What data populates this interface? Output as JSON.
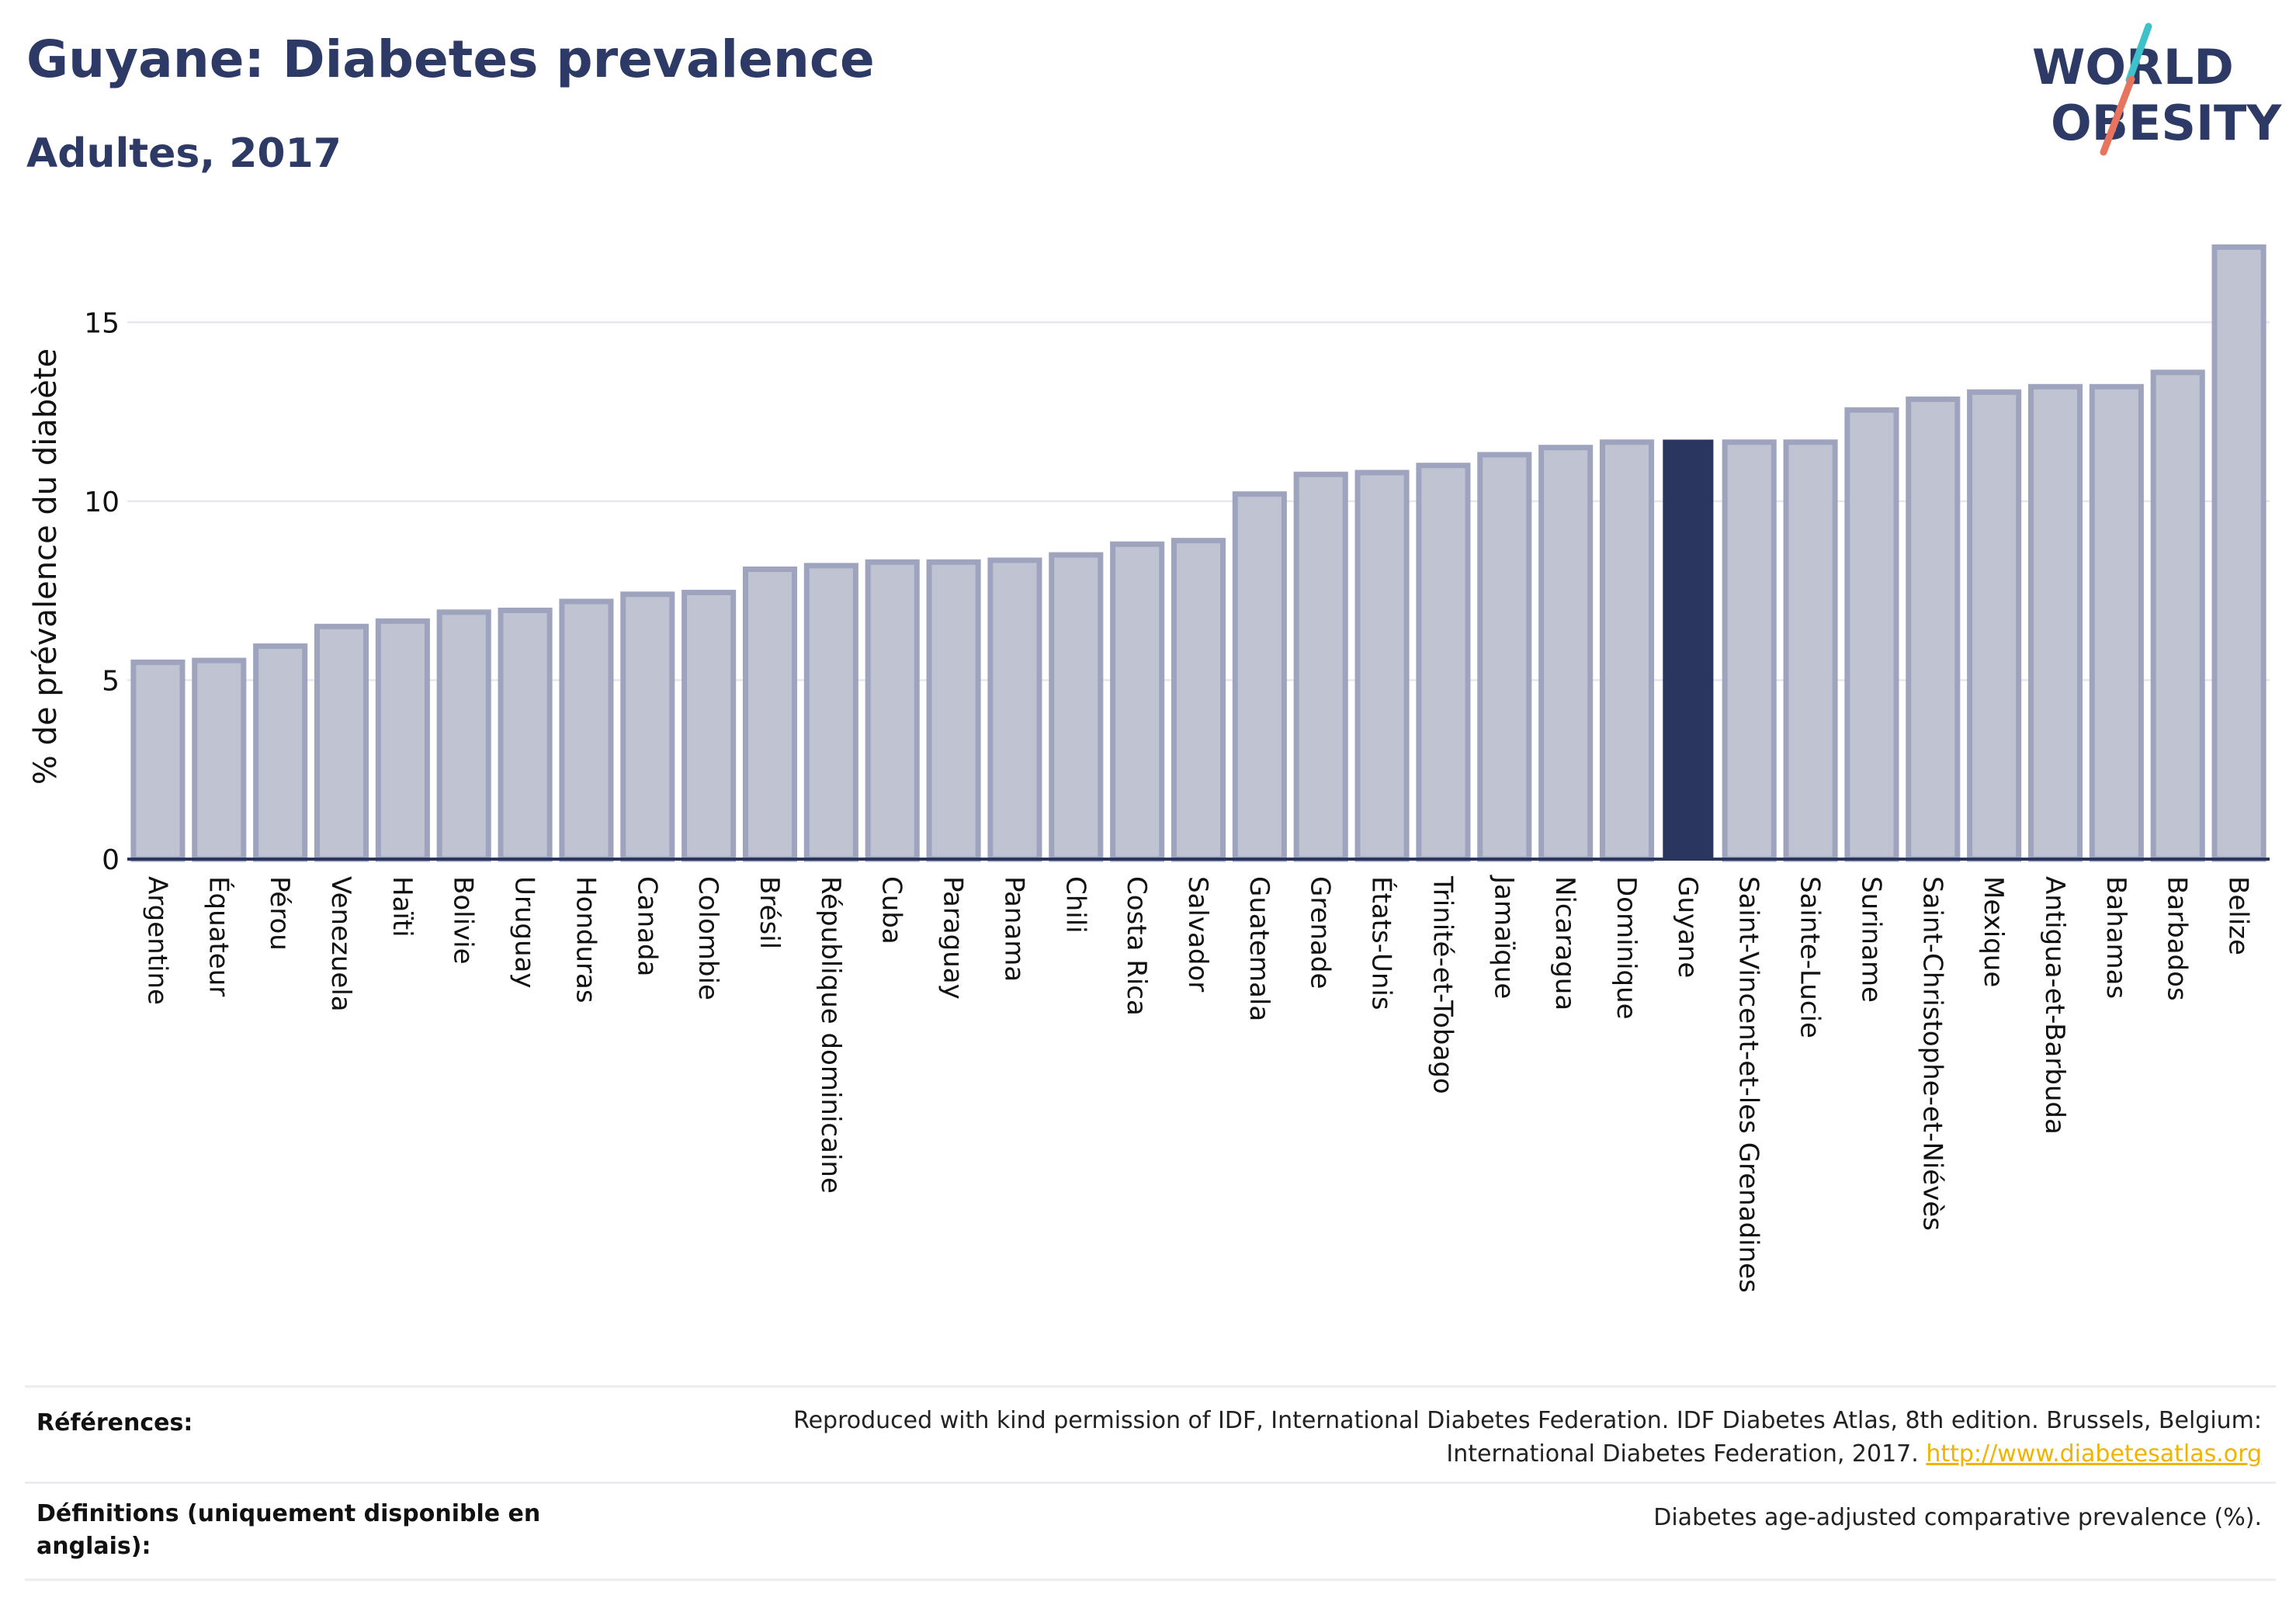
{
  "header": {
    "title": "Guyane: Diabetes prevalence",
    "subtitle": "Adultes, 2017"
  },
  "logo": {
    "line1": "WORLD",
    "line2": "OBESITY",
    "slash_colors": [
      "#3ec1c9",
      "#e8735f"
    ],
    "text_color": "#2d3a66"
  },
  "colors": {
    "bar_fill": "#c0c4d2",
    "bar_stroke": "#9ea4bd",
    "highlight": "#2a3560",
    "axis": "#2a3560",
    "grid": "#e6e7ee"
  },
  "chart_data": {
    "type": "bar",
    "title": "Guyane: Diabetes prevalence",
    "subtitle": "Adultes, 2017",
    "xlabel": "",
    "ylabel": "% de prévalence du diabète",
    "ylim": [
      0,
      17.5
    ],
    "yticks": [
      0,
      5,
      10,
      15
    ],
    "grid": true,
    "highlight": "Guyane",
    "categories": [
      "Argentine",
      "Équateur",
      "Pérou",
      "Venezuela",
      "Haïti",
      "Bolivie",
      "Uruguay",
      "Honduras",
      "Canada",
      "Colombie",
      "Brésil",
      "République dominicaine",
      "Cuba",
      "Paraguay",
      "Panama",
      "Chili",
      "Costa Rica",
      "Salvador",
      "Guatemala",
      "Grenade",
      "États-Unis",
      "Trinité-et-Tobago",
      "Jamaïque",
      "Nicaragua",
      "Dominique",
      "Guyane",
      "Saint-Vincent-et-les Grenadines",
      "Sainte-Lucie",
      "Suriname",
      "Saint-Christophe-et-Niévès",
      "Mexique",
      "Antigua-et-Barbuda",
      "Bahamas",
      "Barbados",
      "Belize"
    ],
    "values": [
      5.5,
      5.55,
      5.95,
      6.5,
      6.65,
      6.9,
      6.95,
      7.2,
      7.4,
      7.45,
      8.1,
      8.2,
      8.3,
      8.3,
      8.35,
      8.5,
      8.8,
      8.9,
      10.2,
      10.75,
      10.8,
      11.0,
      11.3,
      11.5,
      11.65,
      11.7,
      11.65,
      11.65,
      12.55,
      12.85,
      13.05,
      13.2,
      13.2,
      13.6,
      17.1
    ]
  },
  "footer": {
    "references_label": "Références:",
    "references_text": "Reproduced with kind permission of IDF, International Diabetes Federation. IDF Diabetes Atlas, 8th edition. Brussels, Belgium:",
    "references_text2": "International Diabetes Federation, 2017.",
    "references_link": "http://www.diabetesatlas.org",
    "definitions_label_line1": "Définitions (uniquement disponible en",
    "definitions_label_line2": "anglais):",
    "definitions_text": "Diabetes age-adjusted comparative prevalence (%)."
  }
}
